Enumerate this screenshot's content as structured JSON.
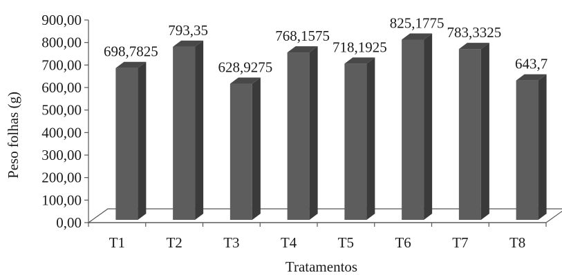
{
  "chart_data": {
    "type": "bar",
    "categories": [
      "T1",
      "T2",
      "T3",
      "T4",
      "T5",
      "T6",
      "T7",
      "T8"
    ],
    "values": [
      698.7825,
      793.35,
      628.9275,
      768.1575,
      718.1925,
      825.1775,
      783.3325,
      643.7
    ],
    "data_labels": [
      "698,7825",
      "793,35",
      "628,9275",
      "768,1575",
      "718,1925",
      "825,1775",
      "783,3325",
      "643,7"
    ],
    "y_ticks": [
      "0,00",
      "100,00",
      "200,00",
      "300,00",
      "400,00",
      "500,00",
      "600,00",
      "700,00",
      "800,00",
      "900,00"
    ],
    "ylim": [
      0,
      900
    ],
    "xlabel": "Tratamentos",
    "ylabel": "Peso folhas (g)",
    "grid": false,
    "style": "3d-column",
    "colors": {
      "bar_front": "#5d5d5d",
      "bar_side": "#3a3a3a",
      "bar_top": "#484848",
      "floor": "#ffffff",
      "axis": "#555555"
    }
  }
}
